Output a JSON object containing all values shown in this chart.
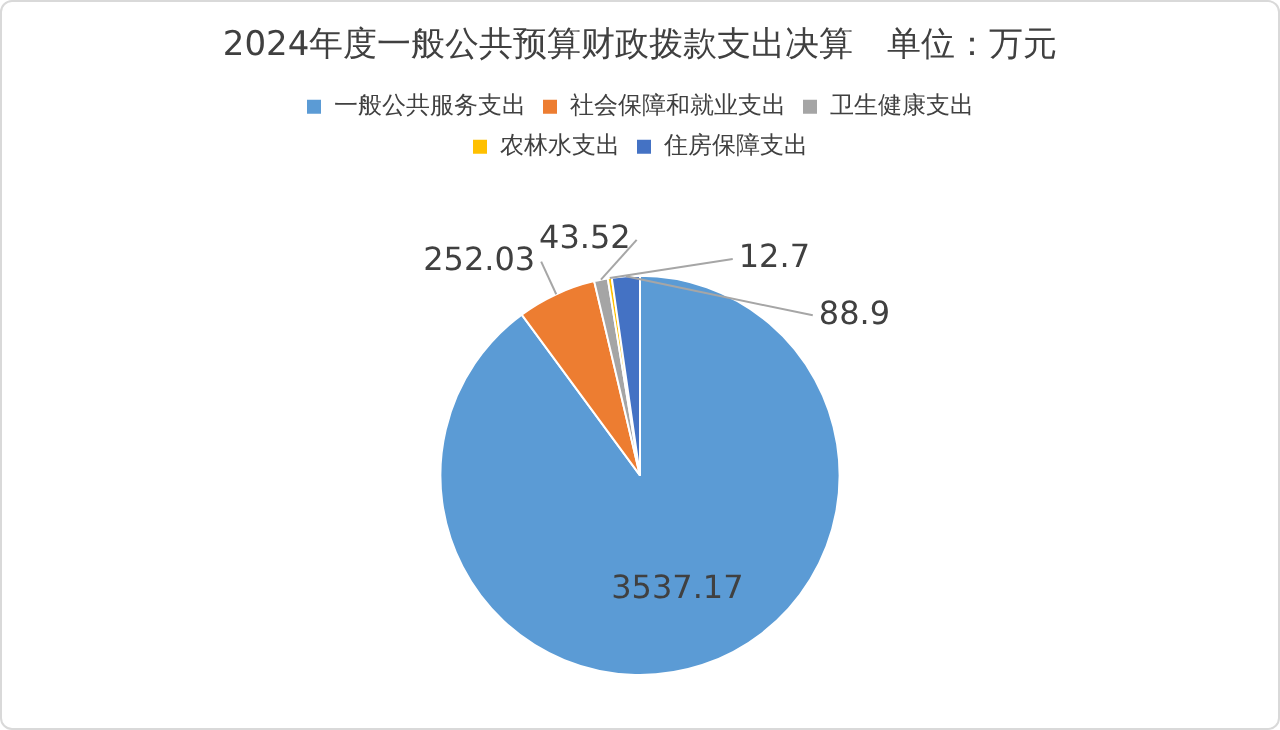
{
  "chart_data": {
    "type": "pie",
    "title": "2024年度一般公共预算财政拨款支出决算　单位：万元",
    "categories": [
      "一般公共服务支出",
      "社会保障和就业支出",
      "卫生健康支出",
      "农林水支出",
      "住房保障支出"
    ],
    "values": [
      3537.17,
      252.03,
      43.52,
      12.7,
      88.9
    ],
    "colors": [
      "#5b9bd5",
      "#ed7d31",
      "#a5a5a5",
      "#ffc000",
      "#4472c4"
    ],
    "data_labels": true,
    "legend": "top"
  }
}
